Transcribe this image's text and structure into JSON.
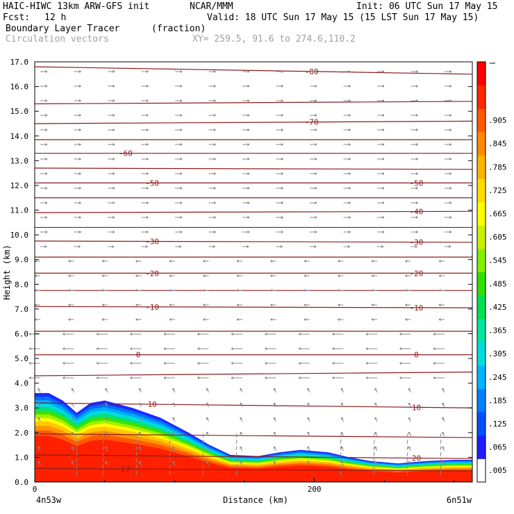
{
  "header": {
    "model": "HAIC-HIWC 13km ARW-GFS init",
    "org": "NCAR/MMM",
    "init": "Init: 06 UTC Sun 17 May 15",
    "fcst_label": "Fcst:",
    "fcst_value": "12 h",
    "valid": "Valid: 18 UTC Sun 17 May 15 (15 LST Sun 17 May 15)",
    "field": "Boundary Layer Tracer",
    "units": "(fraction)",
    "vectors": "Circulation vectors",
    "xy": "XY= 259.5, 91.6 to 274.6,110.2"
  },
  "chart_data": {
    "type": "heatmap",
    "title": "Boundary Layer Tracer",
    "xlabel": "Distance (km)",
    "ylabel": "Height (km)",
    "xlim": [
      0,
      313
    ],
    "ylim": [
      0,
      17
    ],
    "xticks": [
      {
        "value": 0,
        "label": "0"
      },
      {
        "value": 200,
        "label": "200"
      }
    ],
    "x_end_labels": {
      "left": "4n53w",
      "right": "6n51w"
    },
    "yticks": [
      "0.0",
      "1.0",
      "2.0",
      "3.0",
      "4.0",
      "5.0",
      "6.0",
      "7.0",
      "8.0",
      "9.0",
      "10.0",
      "11.0",
      "12.0",
      "13.0",
      "14.0",
      "15.0",
      "16.0",
      "17.0"
    ],
    "colorbar": {
      "labels": [
        ".005",
        ".065",
        ".125",
        ".185",
        ".245",
        ".305",
        ".365",
        ".425",
        ".485",
        ".545",
        ".605",
        ".665",
        ".725",
        ".785",
        ".845",
        ".905"
      ],
      "colors": [
        "#ffffff",
        "#1e1eff",
        "#0050ff",
        "#0080ff",
        "#00b4ff",
        "#00dcdc",
        "#00e6a0",
        "#00e050",
        "#30e000",
        "#80f000",
        "#c8f000",
        "#ffff00",
        "#ffdc00",
        "#ffb400",
        "#ff8c00",
        "#ff5a00",
        "#ff2800",
        "#ff0000"
      ]
    },
    "tracer_top_km": [
      {
        "x": 0,
        "h": 3.6
      },
      {
        "x": 10,
        "h": 3.6
      },
      {
        "x": 20,
        "h": 3.3
      },
      {
        "x": 30,
        "h": 2.8
      },
      {
        "x": 40,
        "h": 3.2
      },
      {
        "x": 50,
        "h": 3.3
      },
      {
        "x": 70,
        "h": 3.0
      },
      {
        "x": 90,
        "h": 2.6
      },
      {
        "x": 110,
        "h": 2.0
      },
      {
        "x": 125,
        "h": 1.5
      },
      {
        "x": 140,
        "h": 1.1
      },
      {
        "x": 160,
        "h": 1.05
      },
      {
        "x": 175,
        "h": 1.2
      },
      {
        "x": 190,
        "h": 1.3
      },
      {
        "x": 210,
        "h": 1.2
      },
      {
        "x": 225,
        "h": 1.0
      },
      {
        "x": 240,
        "h": 0.85
      },
      {
        "x": 260,
        "h": 0.75
      },
      {
        "x": 280,
        "h": 0.85
      },
      {
        "x": 300,
        "h": 0.9
      },
      {
        "x": 313,
        "h": 0.9
      }
    ],
    "temperature_contours": [
      {
        "label": "-80",
        "label_x": [
          198
        ],
        "y0": 16.8,
        "y1": 16.5
      },
      {
        "label": "",
        "label_x": [],
        "y0": 15.3,
        "y1": 15.4
      },
      {
        "label": "-70",
        "label_x": [
          198
        ],
        "y0": 14.5,
        "y1": 14.6
      },
      {
        "label": "",
        "label_x": [],
        "y0": 13.85,
        "y1": 13.85
      },
      {
        "label": "-60",
        "label_x": [
          65
        ],
        "y0": 13.3,
        "y1": 13.3
      },
      {
        "label": "",
        "label_x": [],
        "y0": 12.7,
        "y1": 12.65
      },
      {
        "label": "-50",
        "label_x": [
          84,
          273
        ],
        "y0": 12.1,
        "y1": 12.1
      },
      {
        "label": "",
        "label_x": [],
        "y0": 11.5,
        "y1": 11.5
      },
      {
        "label": "-40",
        "label_x": [
          273
        ],
        "y0": 10.9,
        "y1": 10.95
      },
      {
        "label": "",
        "label_x": [],
        "y0": 10.3,
        "y1": 10.3
      },
      {
        "label": "-30",
        "label_x": [
          84,
          273
        ],
        "y0": 9.75,
        "y1": 9.7
      },
      {
        "label": "",
        "label_x": [],
        "y0": 9.1,
        "y1": 9.1
      },
      {
        "label": "-20",
        "label_x": [
          84,
          273
        ],
        "y0": 8.45,
        "y1": 8.45
      },
      {
        "label": "",
        "label_x": [],
        "y0": 7.75,
        "y1": 7.75
      },
      {
        "label": "-10",
        "label_x": [
          84,
          273
        ],
        "y0": 7.1,
        "y1": 7.05
      },
      {
        "label": "",
        "label_x": [],
        "y0": 6.1,
        "y1": 6.1
      },
      {
        "label": "0",
        "label_x": [
          74,
          273
        ],
        "y0": 5.15,
        "y1": 5.15
      },
      {
        "label": "",
        "label_x": [],
        "y0": 4.3,
        "y1": 4.45
      },
      {
        "label": "10",
        "label_x": [
          84,
          273
        ],
        "y0": 3.2,
        "y1": 3.0
      },
      {
        "label": "",
        "label_x": [],
        "y0": 1.95,
        "y1": 1.8
      },
      {
        "label": "20",
        "label_x": [
          273
        ],
        "y0": 1.1,
        "y1": 0.95
      },
      {
        "label": "27",
        "label_x": [
          65
        ],
        "y0": 0.55,
        "y1": 0.45
      }
    ]
  },
  "colors": {
    "axis": "#000000",
    "contour": "#8b1a1a",
    "vector": "#888888"
  }
}
